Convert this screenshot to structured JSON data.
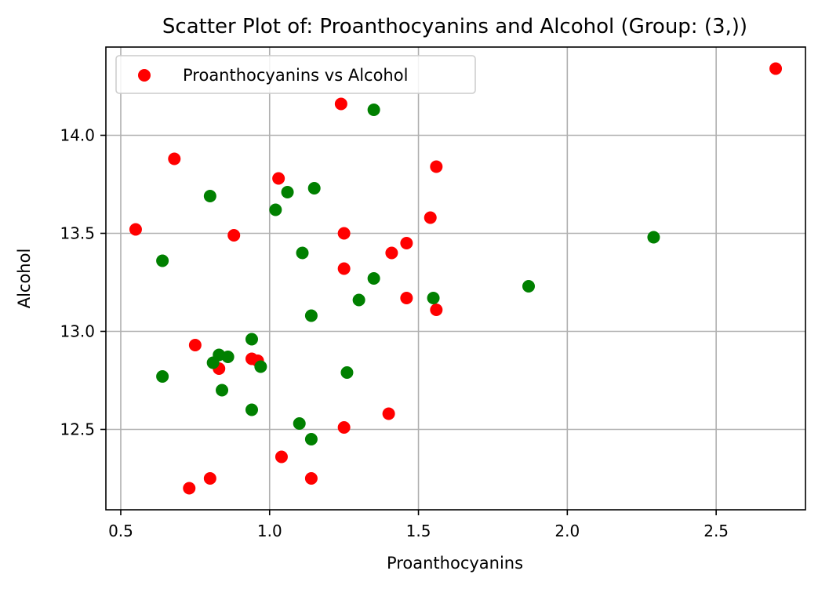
{
  "chart_data": {
    "type": "scatter",
    "title": "Scatter Plot of: Proanthocyanins and Alcohol (Group: (3,))",
    "xlabel": "Proanthocyanins",
    "ylabel": "Alcohol",
    "xlim": [
      0.45,
      2.8
    ],
    "ylim": [
      12.09,
      14.45
    ],
    "xticks": [
      0.5,
      1.0,
      1.5,
      2.0,
      2.5
    ],
    "xtick_labels": [
      "0.5",
      "1.0",
      "1.5",
      "2.0",
      "2.5"
    ],
    "yticks": [
      12.5,
      13.0,
      13.5,
      14.0
    ],
    "ytick_labels": [
      "12.5",
      "13.0",
      "13.5",
      "14.0"
    ],
    "grid": true,
    "legend": {
      "position": "top-left",
      "entries": [
        "Proanthocyanins vs Alcohol"
      ]
    },
    "series": [
      {
        "name": "Proanthocyanins vs Alcohol",
        "color": "#ff0000",
        "points": [
          [
            2.7,
            14.34
          ],
          [
            1.24,
            14.16
          ],
          [
            0.68,
            13.88
          ],
          [
            1.56,
            13.84
          ],
          [
            1.03,
            13.78
          ],
          [
            1.54,
            13.58
          ],
          [
            0.55,
            13.52
          ],
          [
            1.25,
            13.5
          ],
          [
            0.88,
            13.49
          ],
          [
            1.46,
            13.45
          ],
          [
            1.41,
            13.4
          ],
          [
            1.25,
            13.32
          ],
          [
            1.46,
            13.17
          ],
          [
            1.56,
            13.11
          ],
          [
            0.75,
            12.93
          ],
          [
            0.94,
            12.86
          ],
          [
            0.96,
            12.85
          ],
          [
            0.83,
            12.81
          ],
          [
            1.4,
            12.58
          ],
          [
            1.25,
            12.51
          ],
          [
            1.04,
            12.36
          ],
          [
            0.8,
            12.25
          ],
          [
            1.14,
            12.25
          ],
          [
            0.73,
            12.2
          ]
        ]
      },
      {
        "name": "",
        "color": "#008000",
        "points": [
          [
            1.35,
            14.13
          ],
          [
            1.15,
            13.73
          ],
          [
            1.06,
            13.71
          ],
          [
            0.8,
            13.69
          ],
          [
            1.02,
            13.62
          ],
          [
            2.29,
            13.48
          ],
          [
            1.11,
            13.4
          ],
          [
            0.64,
            13.36
          ],
          [
            1.35,
            13.27
          ],
          [
            1.87,
            13.23
          ],
          [
            1.55,
            13.17
          ],
          [
            1.3,
            13.16
          ],
          [
            1.14,
            13.08
          ],
          [
            0.94,
            12.96
          ],
          [
            0.83,
            12.88
          ],
          [
            0.86,
            12.87
          ],
          [
            0.81,
            12.84
          ],
          [
            0.97,
            12.82
          ],
          [
            1.26,
            12.79
          ],
          [
            0.64,
            12.77
          ],
          [
            0.84,
            12.7
          ],
          [
            0.94,
            12.6
          ],
          [
            1.1,
            12.53
          ],
          [
            1.14,
            12.45
          ]
        ]
      }
    ]
  }
}
